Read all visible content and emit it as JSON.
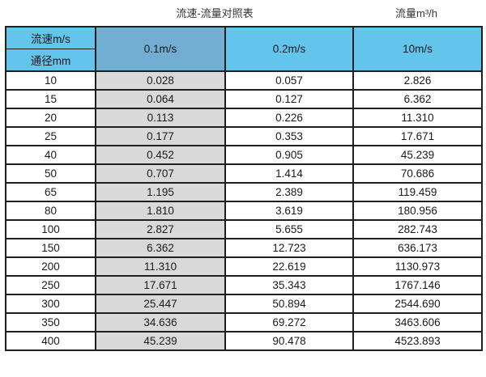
{
  "page": {
    "title_left": "流速-流量对照表",
    "title_right": "流量m³/h"
  },
  "colors": {
    "header_light_blue": "#63c4ec",
    "header_muted_blue": "#71aed2",
    "gray_column": "#d9d9d9",
    "border": "#1f1f1f",
    "text": "#1a1a1a"
  },
  "table": {
    "corner_top": "流速m/s",
    "corner_bottom": "通径mm",
    "velocity_headers": [
      "0.1m/s",
      "0.2m/s",
      "10m/s"
    ],
    "rows": [
      {
        "diameter": "10",
        "values": [
          "0.028",
          "0.057",
          "2.826"
        ]
      },
      {
        "diameter": "15",
        "values": [
          "0.064",
          "0.127",
          "6.362"
        ]
      },
      {
        "diameter": "20",
        "values": [
          "0.113",
          "0.226",
          "11.310"
        ]
      },
      {
        "diameter": "25",
        "values": [
          "0.177",
          "0.353",
          "17.671"
        ]
      },
      {
        "diameter": "40",
        "values": [
          "0.452",
          "0.905",
          "45.239"
        ]
      },
      {
        "diameter": "50",
        "values": [
          "0.707",
          "1.414",
          "70.686"
        ]
      },
      {
        "diameter": "65",
        "values": [
          "1.195",
          "2.389",
          "119.459"
        ]
      },
      {
        "diameter": "80",
        "values": [
          "1.810",
          "3.619",
          "180.956"
        ]
      },
      {
        "diameter": "100",
        "values": [
          "2.827",
          "5.655",
          "282.743"
        ]
      },
      {
        "diameter": "150",
        "values": [
          "6.362",
          "12.723",
          "636.173"
        ]
      },
      {
        "diameter": "200",
        "values": [
          "11.310",
          "22.619",
          "1130.973"
        ]
      },
      {
        "diameter": "250",
        "values": [
          "17.671",
          "35.343",
          "1767.146"
        ]
      },
      {
        "diameter": "300",
        "values": [
          "25.447",
          "50.894",
          "2544.690"
        ]
      },
      {
        "diameter": "350",
        "values": [
          "34.636",
          "69.272",
          "3463.606"
        ]
      },
      {
        "diameter": "400",
        "values": [
          "45.239",
          "90.478",
          "4523.893"
        ]
      }
    ]
  },
  "chart_data": {
    "type": "table",
    "title": "流速-流量对照表",
    "value_unit_label": "流量m³/h",
    "row_axis_label": "通径mm",
    "col_axis_label": "流速m/s",
    "categories": [
      10,
      15,
      20,
      25,
      40,
      50,
      65,
      80,
      100,
      150,
      200,
      250,
      300,
      350,
      400
    ],
    "series": [
      {
        "name": "0.1m/s",
        "values": [
          0.028,
          0.064,
          0.113,
          0.177,
          0.452,
          0.707,
          1.195,
          1.81,
          2.827,
          6.362,
          11.31,
          17.671,
          25.447,
          34.636,
          45.239
        ]
      },
      {
        "name": "0.2m/s",
        "values": [
          0.057,
          0.127,
          0.226,
          0.353,
          0.905,
          1.414,
          2.389,
          3.619,
          5.655,
          12.723,
          22.619,
          35.343,
          50.894,
          69.272,
          90.478
        ]
      },
      {
        "name": "10m/s",
        "values": [
          2.826,
          6.362,
          11.31,
          17.671,
          45.239,
          70.686,
          119.459,
          180.956,
          282.743,
          636.173,
          1130.973,
          1767.146,
          2544.69,
          3463.606,
          4523.893
        ]
      }
    ]
  }
}
